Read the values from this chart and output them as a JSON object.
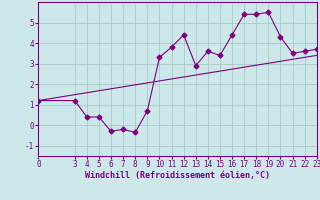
{
  "title": "",
  "xlabel": "Windchill (Refroidissement éolien,°C)",
  "ylabel": "",
  "bg_color": "#cce8e8",
  "line_color": "#800080",
  "grid_color": "#aac8c8",
  "x_data": [
    0,
    3,
    4,
    5,
    6,
    7,
    8,
    9,
    10,
    11,
    12,
    13,
    14,
    15,
    16,
    17,
    18,
    19,
    20,
    21,
    22,
    23
  ],
  "y_data": [
    1.2,
    1.2,
    0.4,
    0.4,
    -0.3,
    -0.2,
    -0.35,
    0.7,
    3.3,
    3.8,
    4.4,
    2.9,
    3.6,
    3.4,
    4.4,
    5.4,
    5.4,
    5.5,
    4.3,
    3.5,
    3.6,
    3.7
  ],
  "trend_x": [
    0,
    23
  ],
  "trend_y": [
    1.2,
    3.4
  ],
  "ylim": [
    -1.5,
    6.0
  ],
  "yticks": [
    -1,
    0,
    1,
    2,
    3,
    4,
    5
  ],
  "xticks": [
    0,
    3,
    4,
    5,
    6,
    7,
    8,
    9,
    10,
    11,
    12,
    13,
    14,
    15,
    16,
    17,
    18,
    19,
    20,
    21,
    22,
    23
  ],
  "xlim": [
    0,
    23
  ],
  "marker": "D",
  "markersize": 2.5,
  "linewidth": 0.8,
  "fontsize_label": 6.0,
  "fontsize_tick": 5.5
}
